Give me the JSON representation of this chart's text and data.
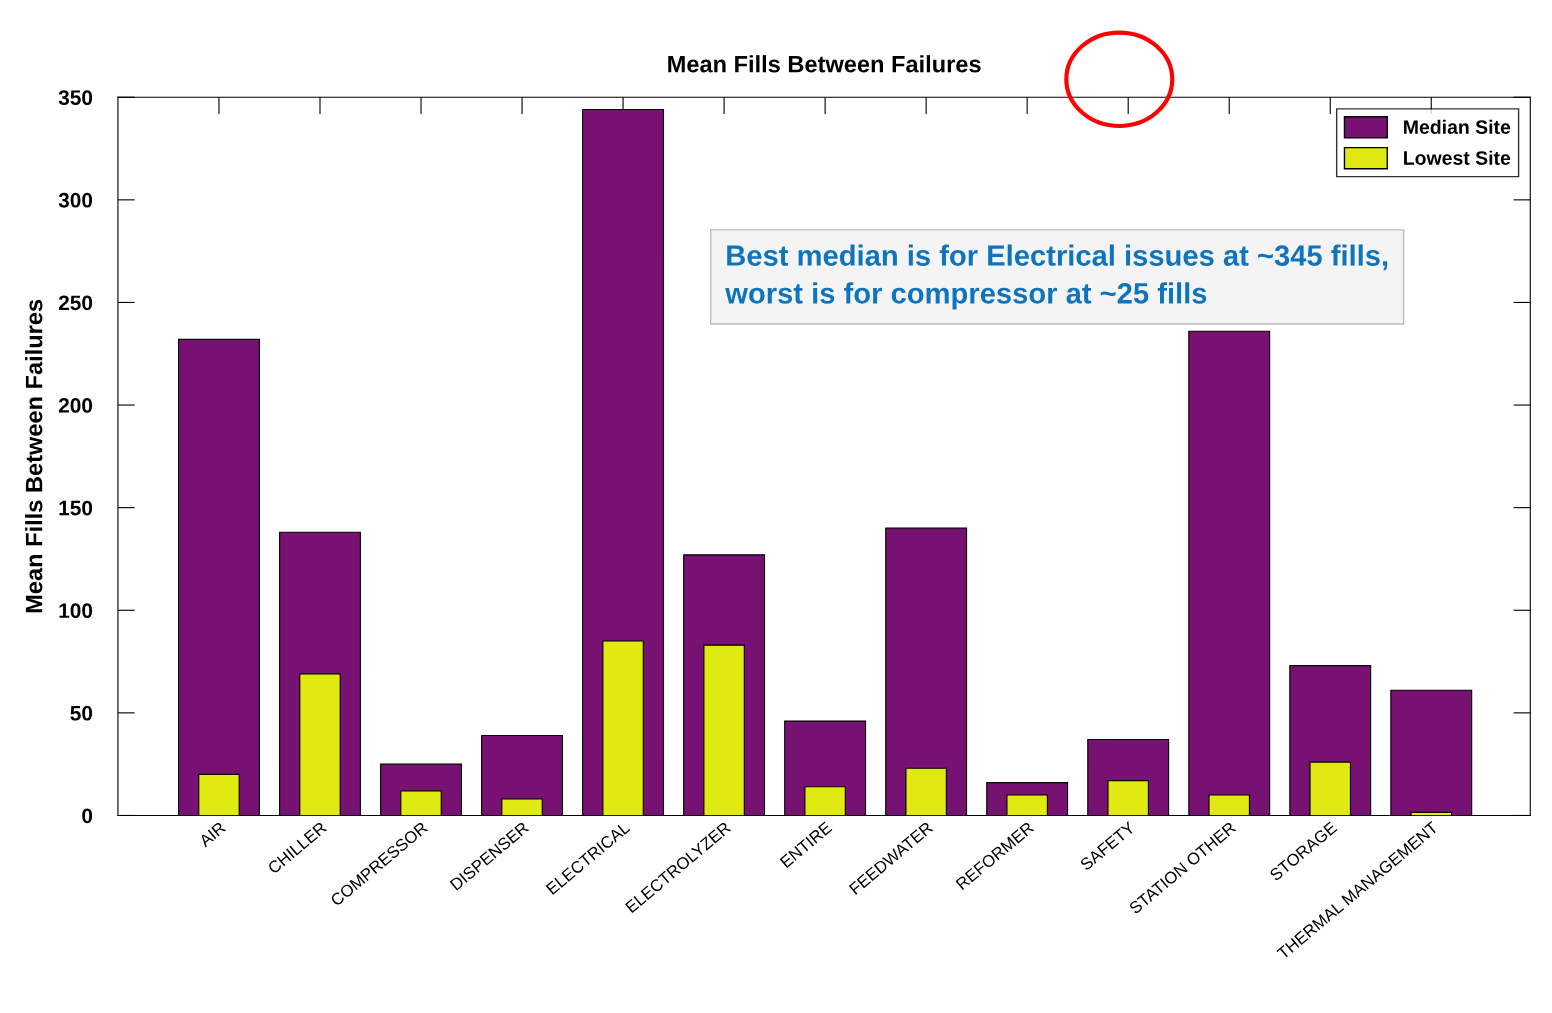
{
  "chart_data": {
    "type": "bar",
    "title": "Mean Fills Between Failures",
    "ylabel": "Mean Fills Between Failures",
    "categories": [
      "AIR",
      "CHILLER",
      "COMPRESSOR",
      "DISPENSER",
      "ELECTRICAL",
      "ELECTROLYZER",
      "ENTIRE",
      "FEEDWATER",
      "REFORMER",
      "SAFETY",
      "STATION OTHER",
      "STORAGE",
      "THERMAL MANAGEMENT"
    ],
    "series": [
      {
        "name": "Median Site",
        "color": "#771272",
        "values": [
          232,
          138,
          25,
          39,
          344,
          127,
          46,
          140,
          16,
          37,
          236,
          73,
          61
        ]
      },
      {
        "name": "Lowest Site",
        "color": "#e0ea12",
        "values": [
          20,
          69,
          12,
          8,
          85,
          83,
          14,
          23,
          10,
          17,
          10,
          26,
          1.5
        ]
      }
    ],
    "ylim": [
      0,
      350
    ],
    "yticks": [
      0,
      50,
      100,
      150,
      200,
      250,
      300,
      350
    ],
    "grid": false,
    "legend": "top right",
    "annotations": [
      "Best median is for Electrical issues at ~345 fills,\nworst is for compressor at ~25 fills"
    ]
  }
}
